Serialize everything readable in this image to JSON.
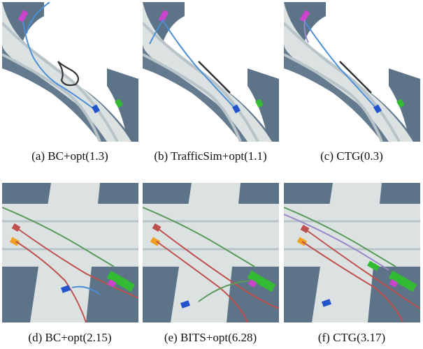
{
  "figure": {
    "rows": [
      {
        "panels": [
          {
            "caption": "(a)  BC+opt(1.3)"
          },
          {
            "caption": "(b)  TrafficSim+opt(1.1)"
          },
          {
            "caption": "(c)  CTG(0.3)"
          }
        ]
      },
      {
        "panels": [
          {
            "caption": "(d)  BC+opt(2.15)"
          },
          {
            "caption": "(e)  BITS+opt(6.28)"
          },
          {
            "caption": "(f)  CTG(3.17)"
          }
        ]
      }
    ],
    "colors": {
      "road": "#dce2e2",
      "lane": "#b9c4c8",
      "offroad": "#5c7388",
      "ego_vehicle": "#cc44cc",
      "other_green": "#33bb33",
      "other_blue": "#2255cc",
      "traj_blue": "#4a8fd6",
      "traj_dark": "#333333",
      "traj_red": "#c0504d",
      "traj_green": "#5a9a5a",
      "traj_purple": "#9a88c8"
    }
  }
}
